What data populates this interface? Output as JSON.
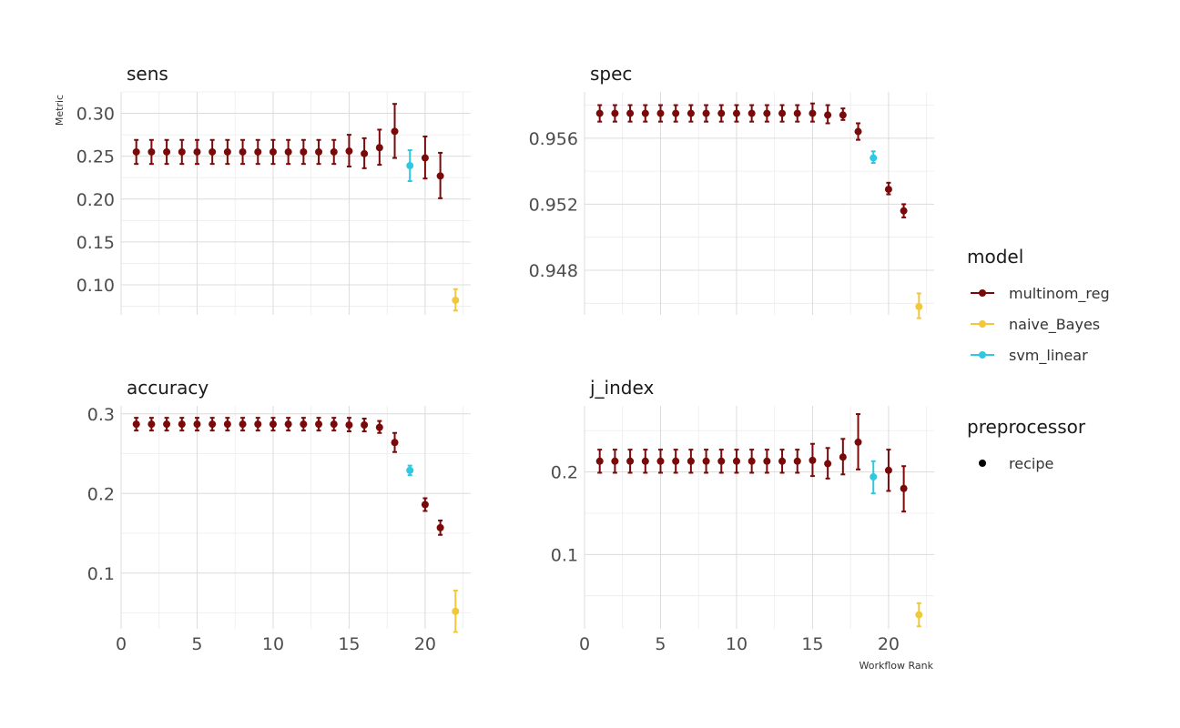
{
  "chart_data": {
    "type": "scatter",
    "style": "faceted point-range (mean ± error bar) plot, 2x2 panels, shared x-axis",
    "xlabel": "Workflow Rank",
    "ylabel": "Metric",
    "x_ticks": [
      0,
      5,
      10,
      15,
      20
    ],
    "xlim": [
      0,
      23
    ],
    "grid": true,
    "legend_position": "right",
    "colors": {
      "multinom_reg": "#7a0a0a",
      "naive_Bayes": "#f0c83c",
      "svm_linear": "#2ec8e0"
    },
    "legends": [
      {
        "title": "model",
        "entries": [
          "multinom_reg",
          "naive_Bayes",
          "svm_linear"
        ],
        "icons": [
          "point-line",
          "point-line",
          "point-line"
        ]
      },
      {
        "title": "preprocessor",
        "entries": [
          "recipe"
        ],
        "icons": [
          "point"
        ]
      }
    ],
    "panels": [
      {
        "metric": "sens",
        "ylim": [
          0.065,
          0.325
        ],
        "y_ticks": [
          0.1,
          0.15,
          0.2,
          0.25,
          0.3
        ],
        "y_tick_labels": [
          "0.10",
          "0.15",
          "0.20",
          "0.25",
          "0.30"
        ],
        "points": [
          {
            "rank": 1,
            "model": "multinom_reg",
            "mean": 0.255,
            "lower": 0.241,
            "upper": 0.269
          },
          {
            "rank": 2,
            "model": "multinom_reg",
            "mean": 0.255,
            "lower": 0.241,
            "upper": 0.269
          },
          {
            "rank": 3,
            "model": "multinom_reg",
            "mean": 0.255,
            "lower": 0.241,
            "upper": 0.269
          },
          {
            "rank": 4,
            "model": "multinom_reg",
            "mean": 0.255,
            "lower": 0.241,
            "upper": 0.269
          },
          {
            "rank": 5,
            "model": "multinom_reg",
            "mean": 0.255,
            "lower": 0.241,
            "upper": 0.269
          },
          {
            "rank": 6,
            "model": "multinom_reg",
            "mean": 0.255,
            "lower": 0.241,
            "upper": 0.269
          },
          {
            "rank": 7,
            "model": "multinom_reg",
            "mean": 0.255,
            "lower": 0.241,
            "upper": 0.269
          },
          {
            "rank": 8,
            "model": "multinom_reg",
            "mean": 0.255,
            "lower": 0.241,
            "upper": 0.269
          },
          {
            "rank": 9,
            "model": "multinom_reg",
            "mean": 0.255,
            "lower": 0.241,
            "upper": 0.269
          },
          {
            "rank": 10,
            "model": "multinom_reg",
            "mean": 0.255,
            "lower": 0.241,
            "upper": 0.269
          },
          {
            "rank": 11,
            "model": "multinom_reg",
            "mean": 0.255,
            "lower": 0.241,
            "upper": 0.269
          },
          {
            "rank": 12,
            "model": "multinom_reg",
            "mean": 0.255,
            "lower": 0.241,
            "upper": 0.269
          },
          {
            "rank": 13,
            "model": "multinom_reg",
            "mean": 0.255,
            "lower": 0.241,
            "upper": 0.269
          },
          {
            "rank": 14,
            "model": "multinom_reg",
            "mean": 0.255,
            "lower": 0.241,
            "upper": 0.269
          },
          {
            "rank": 15,
            "model": "multinom_reg",
            "mean": 0.256,
            "lower": 0.238,
            "upper": 0.275
          },
          {
            "rank": 16,
            "model": "multinom_reg",
            "mean": 0.253,
            "lower": 0.236,
            "upper": 0.271
          },
          {
            "rank": 17,
            "model": "multinom_reg",
            "mean": 0.26,
            "lower": 0.24,
            "upper": 0.281
          },
          {
            "rank": 18,
            "model": "multinom_reg",
            "mean": 0.279,
            "lower": 0.248,
            "upper": 0.311
          },
          {
            "rank": 19,
            "model": "svm_linear",
            "mean": 0.239,
            "lower": 0.221,
            "upper": 0.257
          },
          {
            "rank": 20,
            "model": "multinom_reg",
            "mean": 0.248,
            "lower": 0.224,
            "upper": 0.273
          },
          {
            "rank": 21,
            "model": "multinom_reg",
            "mean": 0.227,
            "lower": 0.201,
            "upper": 0.254
          },
          {
            "rank": 22,
            "model": "naive_Bayes",
            "mean": 0.082,
            "lower": 0.07,
            "upper": 0.095
          }
        ]
      },
      {
        "metric": "spec",
        "ylim": [
          0.9453,
          0.9588
        ],
        "y_ticks": [
          0.948,
          0.952,
          0.956
        ],
        "y_tick_labels": [
          "0.948",
          "0.952",
          "0.956"
        ],
        "points": [
          {
            "rank": 1,
            "model": "multinom_reg",
            "mean": 0.9575,
            "lower": 0.957,
            "upper": 0.958
          },
          {
            "rank": 2,
            "model": "multinom_reg",
            "mean": 0.9575,
            "lower": 0.957,
            "upper": 0.958
          },
          {
            "rank": 3,
            "model": "multinom_reg",
            "mean": 0.9575,
            "lower": 0.957,
            "upper": 0.958
          },
          {
            "rank": 4,
            "model": "multinom_reg",
            "mean": 0.9575,
            "lower": 0.957,
            "upper": 0.958
          },
          {
            "rank": 5,
            "model": "multinom_reg",
            "mean": 0.9575,
            "lower": 0.957,
            "upper": 0.958
          },
          {
            "rank": 6,
            "model": "multinom_reg",
            "mean": 0.9575,
            "lower": 0.957,
            "upper": 0.958
          },
          {
            "rank": 7,
            "model": "multinom_reg",
            "mean": 0.9575,
            "lower": 0.957,
            "upper": 0.958
          },
          {
            "rank": 8,
            "model": "multinom_reg",
            "mean": 0.9575,
            "lower": 0.957,
            "upper": 0.958
          },
          {
            "rank": 9,
            "model": "multinom_reg",
            "mean": 0.9575,
            "lower": 0.957,
            "upper": 0.958
          },
          {
            "rank": 10,
            "model": "multinom_reg",
            "mean": 0.9575,
            "lower": 0.957,
            "upper": 0.958
          },
          {
            "rank": 11,
            "model": "multinom_reg",
            "mean": 0.9575,
            "lower": 0.957,
            "upper": 0.958
          },
          {
            "rank": 12,
            "model": "multinom_reg",
            "mean": 0.9575,
            "lower": 0.957,
            "upper": 0.958
          },
          {
            "rank": 13,
            "model": "multinom_reg",
            "mean": 0.9575,
            "lower": 0.957,
            "upper": 0.958
          },
          {
            "rank": 14,
            "model": "multinom_reg",
            "mean": 0.9575,
            "lower": 0.957,
            "upper": 0.958
          },
          {
            "rank": 15,
            "model": "multinom_reg",
            "mean": 0.9575,
            "lower": 0.957,
            "upper": 0.9581
          },
          {
            "rank": 16,
            "model": "multinom_reg",
            "mean": 0.9574,
            "lower": 0.9569,
            "upper": 0.958
          },
          {
            "rank": 17,
            "model": "multinom_reg",
            "mean": 0.9574,
            "lower": 0.9571,
            "upper": 0.9578
          },
          {
            "rank": 18,
            "model": "multinom_reg",
            "mean": 0.9564,
            "lower": 0.9559,
            "upper": 0.9569
          },
          {
            "rank": 19,
            "model": "svm_linear",
            "mean": 0.9548,
            "lower": 0.9545,
            "upper": 0.9552
          },
          {
            "rank": 20,
            "model": "multinom_reg",
            "mean": 0.9529,
            "lower": 0.9526,
            "upper": 0.9533
          },
          {
            "rank": 21,
            "model": "multinom_reg",
            "mean": 0.9516,
            "lower": 0.9512,
            "upper": 0.952
          },
          {
            "rank": 22,
            "model": "naive_Bayes",
            "mean": 0.9458,
            "lower": 0.9451,
            "upper": 0.9466
          }
        ]
      },
      {
        "metric": "accuracy",
        "ylim": [
          0.03,
          0.31
        ],
        "y_ticks": [
          0.1,
          0.2,
          0.3
        ],
        "y_tick_labels": [
          "0.1",
          "0.2",
          "0.3"
        ],
        "points": [
          {
            "rank": 1,
            "model": "multinom_reg",
            "mean": 0.287,
            "lower": 0.279,
            "upper": 0.295
          },
          {
            "rank": 2,
            "model": "multinom_reg",
            "mean": 0.287,
            "lower": 0.279,
            "upper": 0.295
          },
          {
            "rank": 3,
            "model": "multinom_reg",
            "mean": 0.287,
            "lower": 0.279,
            "upper": 0.295
          },
          {
            "rank": 4,
            "model": "multinom_reg",
            "mean": 0.287,
            "lower": 0.279,
            "upper": 0.295
          },
          {
            "rank": 5,
            "model": "multinom_reg",
            "mean": 0.287,
            "lower": 0.279,
            "upper": 0.295
          },
          {
            "rank": 6,
            "model": "multinom_reg",
            "mean": 0.287,
            "lower": 0.279,
            "upper": 0.295
          },
          {
            "rank": 7,
            "model": "multinom_reg",
            "mean": 0.287,
            "lower": 0.279,
            "upper": 0.295
          },
          {
            "rank": 8,
            "model": "multinom_reg",
            "mean": 0.287,
            "lower": 0.279,
            "upper": 0.295
          },
          {
            "rank": 9,
            "model": "multinom_reg",
            "mean": 0.287,
            "lower": 0.279,
            "upper": 0.295
          },
          {
            "rank": 10,
            "model": "multinom_reg",
            "mean": 0.287,
            "lower": 0.279,
            "upper": 0.295
          },
          {
            "rank": 11,
            "model": "multinom_reg",
            "mean": 0.287,
            "lower": 0.279,
            "upper": 0.295
          },
          {
            "rank": 12,
            "model": "multinom_reg",
            "mean": 0.287,
            "lower": 0.279,
            "upper": 0.295
          },
          {
            "rank": 13,
            "model": "multinom_reg",
            "mean": 0.287,
            "lower": 0.279,
            "upper": 0.295
          },
          {
            "rank": 14,
            "model": "multinom_reg",
            "mean": 0.287,
            "lower": 0.279,
            "upper": 0.295
          },
          {
            "rank": 15,
            "model": "multinom_reg",
            "mean": 0.286,
            "lower": 0.278,
            "upper": 0.295
          },
          {
            "rank": 16,
            "model": "multinom_reg",
            "mean": 0.286,
            "lower": 0.278,
            "upper": 0.294
          },
          {
            "rank": 17,
            "model": "multinom_reg",
            "mean": 0.283,
            "lower": 0.276,
            "upper": 0.291
          },
          {
            "rank": 18,
            "model": "multinom_reg",
            "mean": 0.264,
            "lower": 0.252,
            "upper": 0.276
          },
          {
            "rank": 19,
            "model": "svm_linear",
            "mean": 0.229,
            "lower": 0.223,
            "upper": 0.235
          },
          {
            "rank": 20,
            "model": "multinom_reg",
            "mean": 0.186,
            "lower": 0.178,
            "upper": 0.194
          },
          {
            "rank": 21,
            "model": "multinom_reg",
            "mean": 0.157,
            "lower": 0.148,
            "upper": 0.166
          },
          {
            "rank": 22,
            "model": "naive_Bayes",
            "mean": 0.052,
            "lower": 0.026,
            "upper": 0.078
          }
        ]
      },
      {
        "metric": "j_index",
        "ylim": [
          0.01,
          0.28
        ],
        "y_ticks": [
          0.1,
          0.2
        ],
        "y_tick_labels": [
          "0.1",
          "0.2"
        ],
        "points": [
          {
            "rank": 1,
            "model": "multinom_reg",
            "mean": 0.213,
            "lower": 0.199,
            "upper": 0.227
          },
          {
            "rank": 2,
            "model": "multinom_reg",
            "mean": 0.213,
            "lower": 0.199,
            "upper": 0.227
          },
          {
            "rank": 3,
            "model": "multinom_reg",
            "mean": 0.213,
            "lower": 0.199,
            "upper": 0.227
          },
          {
            "rank": 4,
            "model": "multinom_reg",
            "mean": 0.213,
            "lower": 0.199,
            "upper": 0.227
          },
          {
            "rank": 5,
            "model": "multinom_reg",
            "mean": 0.213,
            "lower": 0.199,
            "upper": 0.227
          },
          {
            "rank": 6,
            "model": "multinom_reg",
            "mean": 0.213,
            "lower": 0.199,
            "upper": 0.227
          },
          {
            "rank": 7,
            "model": "multinom_reg",
            "mean": 0.213,
            "lower": 0.199,
            "upper": 0.227
          },
          {
            "rank": 8,
            "model": "multinom_reg",
            "mean": 0.213,
            "lower": 0.199,
            "upper": 0.227
          },
          {
            "rank": 9,
            "model": "multinom_reg",
            "mean": 0.213,
            "lower": 0.199,
            "upper": 0.227
          },
          {
            "rank": 10,
            "model": "multinom_reg",
            "mean": 0.213,
            "lower": 0.199,
            "upper": 0.227
          },
          {
            "rank": 11,
            "model": "multinom_reg",
            "mean": 0.213,
            "lower": 0.199,
            "upper": 0.227
          },
          {
            "rank": 12,
            "model": "multinom_reg",
            "mean": 0.213,
            "lower": 0.199,
            "upper": 0.227
          },
          {
            "rank": 13,
            "model": "multinom_reg",
            "mean": 0.213,
            "lower": 0.199,
            "upper": 0.227
          },
          {
            "rank": 14,
            "model": "multinom_reg",
            "mean": 0.213,
            "lower": 0.199,
            "upper": 0.227
          },
          {
            "rank": 15,
            "model": "multinom_reg",
            "mean": 0.214,
            "lower": 0.195,
            "upper": 0.234
          },
          {
            "rank": 16,
            "model": "multinom_reg",
            "mean": 0.21,
            "lower": 0.192,
            "upper": 0.229
          },
          {
            "rank": 17,
            "model": "multinom_reg",
            "mean": 0.218,
            "lower": 0.197,
            "upper": 0.24
          },
          {
            "rank": 18,
            "model": "multinom_reg",
            "mean": 0.236,
            "lower": 0.203,
            "upper": 0.27
          },
          {
            "rank": 19,
            "model": "svm_linear",
            "mean": 0.194,
            "lower": 0.174,
            "upper": 0.213
          },
          {
            "rank": 20,
            "model": "multinom_reg",
            "mean": 0.202,
            "lower": 0.177,
            "upper": 0.227
          },
          {
            "rank": 21,
            "model": "multinom_reg",
            "mean": 0.18,
            "lower": 0.152,
            "upper": 0.207
          },
          {
            "rank": 22,
            "model": "naive_Bayes",
            "mean": 0.027,
            "lower": 0.013,
            "upper": 0.041
          }
        ]
      }
    ]
  }
}
